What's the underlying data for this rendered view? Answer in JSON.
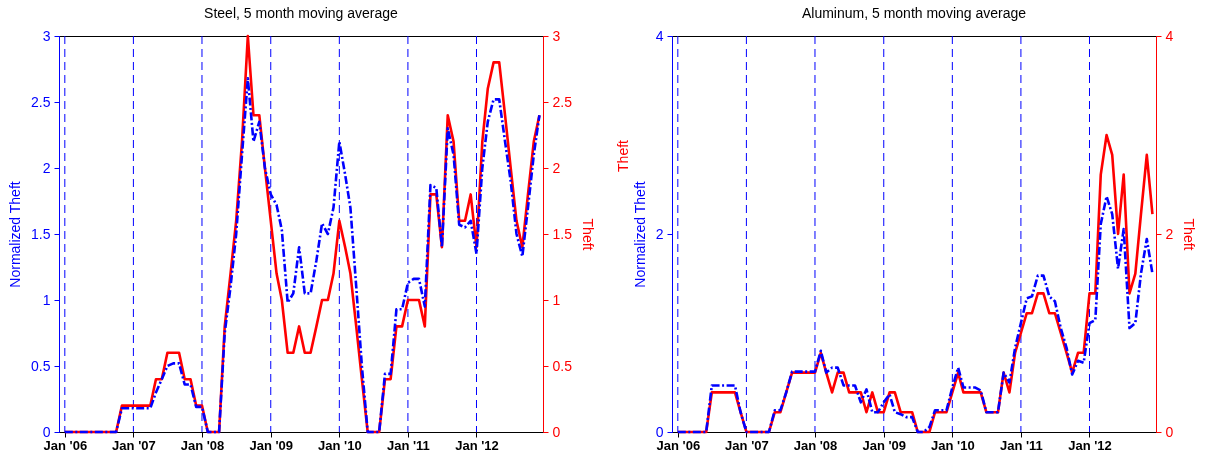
{
  "chart_data": [
    {
      "type": "line",
      "title": "Steel, 5 month moving average",
      "ylabel": "Normalized Theft",
      "y2label": "Theft",
      "xlim": [
        "2005-12",
        "2012-12-20"
      ],
      "xticks": [
        {
          "value": "2006-01",
          "label": "Jan '06"
        },
        {
          "value": "2007-01",
          "label": "Jan '07"
        },
        {
          "value": "2008-01",
          "label": "Jan '08"
        },
        {
          "value": "2009-01",
          "label": "Jan '09"
        },
        {
          "value": "2010-01",
          "label": "Jan '10"
        },
        {
          "value": "2011-01",
          "label": "Jan '11"
        },
        {
          "value": "2012-01",
          "label": "Jan '12"
        }
      ],
      "ylim": [
        0,
        3
      ],
      "yticks": [
        0,
        0.5,
        1,
        1.5,
        2,
        2.5,
        3
      ],
      "y2lim": [
        0,
        3
      ],
      "y2ticks": [
        0,
        0.5,
        1,
        1.5,
        2,
        2.5,
        3
      ],
      "x": [
        "2006-01",
        "2006-02",
        "2006-03",
        "2006-04",
        "2006-05",
        "2006-06",
        "2006-07",
        "2006-08",
        "2006-09",
        "2006-10",
        "2006-11",
        "2006-12",
        "2007-01",
        "2007-02",
        "2007-03",
        "2007-04",
        "2007-05",
        "2007-06",
        "2007-07",
        "2007-08",
        "2007-09",
        "2007-10",
        "2007-11",
        "2007-12",
        "2008-01",
        "2008-02",
        "2008-03",
        "2008-04",
        "2008-05",
        "2008-06",
        "2008-07",
        "2008-08",
        "2008-09",
        "2008-10",
        "2008-11",
        "2008-12",
        "2009-01",
        "2009-02",
        "2009-03",
        "2009-04",
        "2009-05",
        "2009-06",
        "2009-07",
        "2009-08",
        "2009-09",
        "2009-10",
        "2009-11",
        "2009-12",
        "2010-01",
        "2010-02",
        "2010-03",
        "2010-04",
        "2010-05",
        "2010-06",
        "2010-07",
        "2010-08",
        "2010-09",
        "2010-10",
        "2010-11",
        "2010-12",
        "2011-01",
        "2011-02",
        "2011-03",
        "2011-04",
        "2011-05",
        "2011-06",
        "2011-07",
        "2011-08",
        "2011-09",
        "2011-10",
        "2011-11",
        "2011-12",
        "2012-01",
        "2012-02",
        "2012-03",
        "2012-04",
        "2012-05",
        "2012-06",
        "2012-07",
        "2012-08",
        "2012-09",
        "2012-10",
        "2012-11",
        "2012-12"
      ],
      "series": [
        {
          "color": "#0000ff",
          "line_style": "dashed",
          "axis": "y",
          "values": [
            0,
            0,
            0,
            0,
            0,
            0,
            0,
            0,
            0,
            0,
            0.18,
            0.18,
            0.18,
            0.18,
            0.18,
            0.18,
            0.3,
            0.4,
            0.5,
            0.52,
            0.52,
            0.36,
            0.36,
            0.19,
            0.19,
            0,
            0,
            0,
            0.75,
            1.1,
            1.5,
            2.1,
            2.68,
            2.2,
            2.35,
            2,
            1.8,
            1.72,
            1.53,
            0.98,
            1.05,
            1.4,
            1.05,
            1.05,
            1.3,
            1.58,
            1.5,
            1.7,
            2.2,
            1.95,
            1.7,
            1.1,
            0.5,
            0,
            0,
            0,
            0.44,
            0.44,
            0.93,
            0.93,
            1.13,
            1.16,
            1.16,
            0.95,
            1.87,
            1.85,
            1.4,
            2.3,
            2.1,
            1.57,
            1.55,
            1.6,
            1.35,
            2,
            2.35,
            2.52,
            2.52,
            2.2,
            1.9,
            1.5,
            1.33,
            1.7,
            2.1,
            2.4
          ]
        },
        {
          "color": "#ff0000",
          "line_style": "solid",
          "axis": "y2",
          "values": [
            0,
            0,
            0,
            0,
            0,
            0,
            0,
            0,
            0,
            0,
            0.2,
            0.2,
            0.2,
            0.2,
            0.2,
            0.2,
            0.4,
            0.4,
            0.6,
            0.6,
            0.6,
            0.4,
            0.4,
            0.2,
            0.2,
            0,
            0,
            0,
            0.8,
            1.2,
            1.6,
            2.2,
            3,
            2.4,
            2.4,
            2,
            1.6,
            1.2,
            1,
            0.6,
            0.6,
            0.8,
            0.6,
            0.6,
            0.8,
            1,
            1,
            1.2,
            1.6,
            1.4,
            1.2,
            0.8,
            0.4,
            0,
            0,
            0,
            0.4,
            0.4,
            0.8,
            0.8,
            1,
            1,
            1,
            0.8,
            1.8,
            1.8,
            1.4,
            2.4,
            2.2,
            1.6,
            1.6,
            1.8,
            1.4,
            2.2,
            2.6,
            2.8,
            2.8,
            2.4,
            2,
            1.6,
            1.4,
            1.8,
            2.2,
            2.4
          ]
        }
      ],
      "ref_lines": [
        {
          "axis": "x",
          "value": "2006-01",
          "color": "#0000ff",
          "line_style": "dashed"
        },
        {
          "axis": "x",
          "value": "2007-01",
          "color": "#0000ff",
          "line_style": "dashed"
        },
        {
          "axis": "x",
          "value": "2008-01",
          "color": "#0000ff",
          "line_style": "dashed"
        },
        {
          "axis": "x",
          "value": "2009-01",
          "color": "#0000ff",
          "line_style": "dashed"
        },
        {
          "axis": "x",
          "value": "2010-01",
          "color": "#0000ff",
          "line_style": "dashed"
        },
        {
          "axis": "x",
          "value": "2011-01",
          "color": "#0000ff",
          "line_style": "dashed"
        },
        {
          "axis": "x",
          "value": "2012-01",
          "color": "#0000ff",
          "line_style": "dashed"
        }
      ]
    },
    {
      "type": "line",
      "title": "Aluminum, 5 month moving average",
      "ylabel": "Normalized Theft",
      "y2label": "Theft",
      "annotations": [
        "Theft"
      ],
      "xlim": [
        "2005-12",
        "2012-12-20"
      ],
      "xticks": [
        {
          "value": "2006-01",
          "label": "Jan '06"
        },
        {
          "value": "2007-01",
          "label": "Jan '07"
        },
        {
          "value": "2008-01",
          "label": "Jan '08"
        },
        {
          "value": "2009-01",
          "label": "Jan '09"
        },
        {
          "value": "2010-01",
          "label": "Jan '10"
        },
        {
          "value": "2011-01",
          "label": "Jan '11"
        },
        {
          "value": "2012-01",
          "label": "Jan '12"
        }
      ],
      "ylim": [
        0,
        4
      ],
      "yticks": [
        0,
        2,
        4
      ],
      "y2lim": [
        0,
        4
      ],
      "y2ticks": [
        0,
        2,
        4
      ],
      "x": [
        "2006-01",
        "2006-02",
        "2006-03",
        "2006-04",
        "2006-05",
        "2006-06",
        "2006-07",
        "2006-08",
        "2006-09",
        "2006-10",
        "2006-11",
        "2006-12",
        "2007-01",
        "2007-02",
        "2007-03",
        "2007-04",
        "2007-05",
        "2007-06",
        "2007-07",
        "2007-08",
        "2007-09",
        "2007-10",
        "2007-11",
        "2007-12",
        "2008-01",
        "2008-02",
        "2008-03",
        "2008-04",
        "2008-05",
        "2008-06",
        "2008-07",
        "2008-08",
        "2008-09",
        "2008-10",
        "2008-11",
        "2008-12",
        "2009-01",
        "2009-02",
        "2009-03",
        "2009-04",
        "2009-05",
        "2009-06",
        "2009-07",
        "2009-08",
        "2009-09",
        "2009-10",
        "2009-11",
        "2009-12",
        "2010-01",
        "2010-02",
        "2010-03",
        "2010-04",
        "2010-05",
        "2010-06",
        "2010-07",
        "2010-08",
        "2010-09",
        "2010-10",
        "2010-11",
        "2010-12",
        "2011-01",
        "2011-02",
        "2011-03",
        "2011-04",
        "2011-05",
        "2011-06",
        "2011-07",
        "2011-08",
        "2011-09",
        "2011-10",
        "2011-11",
        "2011-12",
        "2012-01",
        "2012-02",
        "2012-03",
        "2012-04",
        "2012-05",
        "2012-06",
        "2012-07",
        "2012-08",
        "2012-09",
        "2012-10",
        "2012-11",
        "2012-12"
      ],
      "series": [
        {
          "color": "#0000ff",
          "line_style": "dashed",
          "axis": "y",
          "values": [
            0,
            0,
            0,
            0,
            0,
            0,
            0.47,
            0.47,
            0.47,
            0.47,
            0.47,
            0.2,
            0,
            0,
            0,
            0,
            0,
            0.22,
            0.22,
            0.4,
            0.61,
            0.61,
            0.61,
            0.61,
            0.61,
            0.82,
            0.6,
            0.65,
            0.65,
            0.47,
            0.47,
            0.47,
            0.3,
            0.43,
            0.2,
            0.2,
            0.3,
            0.38,
            0.2,
            0.18,
            0.15,
            0.15,
            0,
            0,
            0.05,
            0.22,
            0.22,
            0.22,
            0.45,
            0.65,
            0.45,
            0.45,
            0.45,
            0.42,
            0.2,
            0.2,
            0.2,
            0.6,
            0.5,
            0.85,
            1.1,
            1.35,
            1.37,
            1.58,
            1.58,
            1.37,
            1.32,
            1.05,
            0.85,
            0.58,
            0.72,
            0.7,
            1.1,
            1.13,
            2.1,
            2.38,
            2.2,
            1.65,
            2.05,
            1.05,
            1.1,
            1.6,
            1.95,
            1.6
          ]
        },
        {
          "color": "#ff0000",
          "line_style": "solid",
          "axis": "y2",
          "values": [
            0,
            0,
            0,
            0,
            0,
            0,
            0.4,
            0.4,
            0.4,
            0.4,
            0.4,
            0.2,
            0,
            0,
            0,
            0,
            0,
            0.2,
            0.2,
            0.4,
            0.6,
            0.6,
            0.6,
            0.6,
            0.6,
            0.8,
            0.6,
            0.4,
            0.6,
            0.6,
            0.4,
            0.4,
            0.4,
            0.2,
            0.4,
            0.2,
            0.2,
            0.4,
            0.4,
            0.2,
            0.2,
            0.2,
            0,
            0,
            0,
            0.2,
            0.2,
            0.2,
            0.4,
            0.6,
            0.4,
            0.4,
            0.4,
            0.4,
            0.2,
            0.2,
            0.2,
            0.6,
            0.4,
            0.8,
            1,
            1.2,
            1.2,
            1.4,
            1.4,
            1.2,
            1.2,
            1,
            0.8,
            0.6,
            0.8,
            0.8,
            1.4,
            1.4,
            2.6,
            3,
            2.8,
            2,
            2.6,
            1.4,
            1.6,
            2.2,
            2.8,
            2.2
          ]
        }
      ],
      "ref_lines": [
        {
          "axis": "x",
          "value": "2006-01",
          "color": "#0000ff",
          "line_style": "dashed"
        },
        {
          "axis": "x",
          "value": "2007-01",
          "color": "#0000ff",
          "line_style": "dashed"
        },
        {
          "axis": "x",
          "value": "2008-01",
          "color": "#0000ff",
          "line_style": "dashed"
        },
        {
          "axis": "x",
          "value": "2009-01",
          "color": "#0000ff",
          "line_style": "dashed"
        },
        {
          "axis": "x",
          "value": "2010-01",
          "color": "#0000ff",
          "line_style": "dashed"
        },
        {
          "axis": "x",
          "value": "2011-01",
          "color": "#0000ff",
          "line_style": "dashed"
        },
        {
          "axis": "x",
          "value": "2012-01",
          "color": "#0000ff",
          "line_style": "dashed"
        }
      ]
    }
  ]
}
